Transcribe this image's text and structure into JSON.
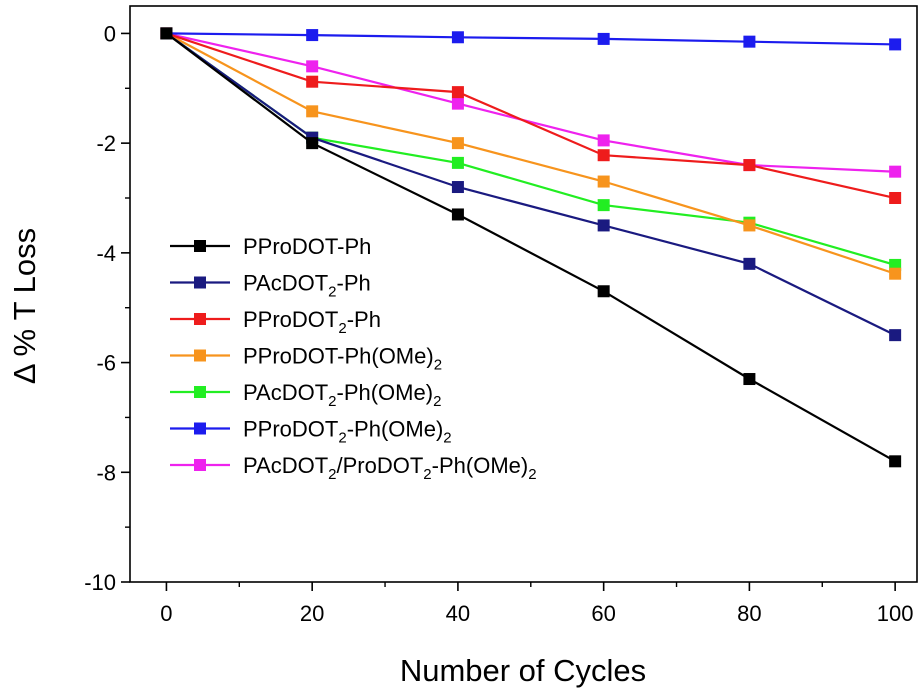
{
  "chart_data": {
    "type": "line",
    "xlabel": "Number of Cycles",
    "ylabel": "Δ % T Loss",
    "xlim": [
      -5,
      103
    ],
    "ylim": [
      -10,
      0.5
    ],
    "x_ticks": [
      0,
      20,
      40,
      60,
      80,
      100
    ],
    "x_tick_labels": [
      "0",
      "20",
      "40",
      "60",
      "80",
      "100"
    ],
    "y_ticks": [
      0,
      -2,
      -4,
      -6,
      -8,
      -10
    ],
    "y_tick_labels": [
      "0",
      "-2",
      "-4",
      "-6",
      "-8",
      "-10"
    ],
    "grid": false,
    "legend_position": "bottom-left",
    "x": [
      0,
      20,
      40,
      60,
      80,
      100
    ],
    "series": [
      {
        "name": "PProDOT-Ph",
        "label_parts": [
          [
            "PProDOT-Ph",
            ""
          ]
        ],
        "color": "#000000",
        "values": [
          0,
          -2.0,
          -3.3,
          -4.7,
          -6.3,
          -7.8
        ]
      },
      {
        "name": "PAcDOT2-Ph",
        "label_parts": [
          [
            "PAcDOT",
            ""
          ],
          [
            "2",
            "sub"
          ],
          [
            "-Ph",
            ""
          ]
        ],
        "color": "#1a1a80",
        "values": [
          0,
          -1.9,
          -2.8,
          -3.5,
          -4.2,
          -5.5
        ]
      },
      {
        "name": "PProDOT2-Ph",
        "label_parts": [
          [
            "PProDOT",
            ""
          ],
          [
            "2",
            "sub"
          ],
          [
            "-Ph",
            ""
          ]
        ],
        "color": "#ee1c1c",
        "values": [
          0,
          -0.88,
          -1.07,
          -2.22,
          -2.4,
          -3.0
        ]
      },
      {
        "name": "PProDOT-Ph(OMe)2",
        "label_parts": [
          [
            "PProDOT-Ph(OMe)",
            ""
          ],
          [
            "2",
            "sub"
          ]
        ],
        "color": "#f7941d",
        "values": [
          0,
          -1.42,
          -2.0,
          -2.7,
          -3.5,
          -4.38
        ]
      },
      {
        "name": "PAcDOT2-Ph(OMe)2",
        "label_parts": [
          [
            "PAcDOT",
            ""
          ],
          [
            "2",
            "sub"
          ],
          [
            "-Ph(OMe)",
            ""
          ],
          [
            "2",
            "sub"
          ]
        ],
        "color": "#22ee22",
        "values": [
          0,
          -1.9,
          -2.36,
          -3.13,
          -3.45,
          -4.22
        ]
      },
      {
        "name": "PProDOT2-Ph(OMe)2",
        "label_parts": [
          [
            "PProDOT",
            ""
          ],
          [
            "2",
            "sub"
          ],
          [
            "-Ph(OMe)",
            ""
          ],
          [
            "2",
            "sub"
          ]
        ],
        "color": "#1c1cee",
        "values": [
          0,
          -0.03,
          -0.07,
          -0.1,
          -0.15,
          -0.2
        ]
      },
      {
        "name": "PAcDOT2/ProDOT2-Ph(OMe)2",
        "label_parts": [
          [
            "PAcDOT",
            ""
          ],
          [
            "2",
            "sub"
          ],
          [
            "/ProDOT",
            ""
          ],
          [
            "2",
            "sub"
          ],
          [
            "-Ph(OMe)",
            ""
          ],
          [
            "2",
            "sub"
          ]
        ],
        "color": "#ee22ee",
        "values": [
          0,
          -0.6,
          -1.28,
          -1.95,
          -2.4,
          -2.52
        ]
      }
    ]
  }
}
